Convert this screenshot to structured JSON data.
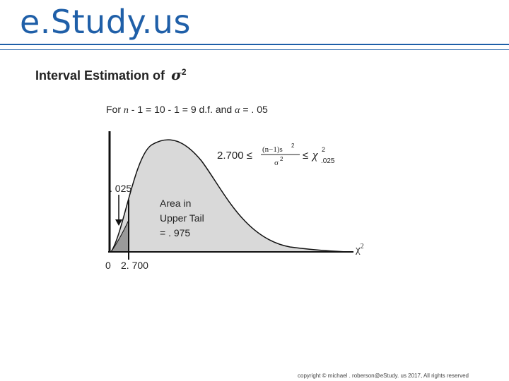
{
  "brand": "e.Study.us",
  "heading": {
    "text": "Interval Estimation of",
    "symbol": "σ",
    "exponent": "2"
  },
  "subline": {
    "for": "For",
    "n": "n",
    "rest": " - 1 = 10 - 1 = 9 d.f. and",
    "alpha": "α",
    "alpha_value": " = . 05"
  },
  "labels": {
    "left_tail": ". 025",
    "area_line1": "Area in",
    "area_line2": "Upper Tail",
    "area_line3": "= . 975",
    "zero": "0",
    "critical": "2. 700",
    "chi": "χ",
    "chi_exp": "2"
  },
  "formula": {
    "lhs": "2.700 ≤",
    "num": "(n−1)s",
    "num_exp": "2",
    "den": "σ",
    "den_exp": "2",
    "rel": "≤",
    "chi": "χ",
    "chi_exp": "2",
    "chi_sub": ".025"
  },
  "colors": {
    "brand": "#1f5fa8",
    "curve_fill": "#d9d9d9",
    "tail_fill": "#9a9a9a"
  },
  "footer": "copyright © michael . roberson@eStudy. us 2017, All rights reserved"
}
